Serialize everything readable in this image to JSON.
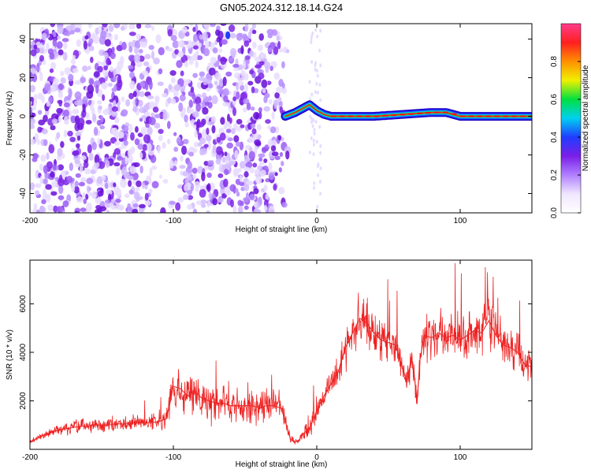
{
  "title": "GN05.2024.312.18.14.G24",
  "chart_data": [
    {
      "type": "heatmap",
      "xlabel": "Height of straight line (km)",
      "ylabel": "Frequency (Hz)",
      "xlim": [
        -200,
        150
      ],
      "ylim": [
        -50,
        48
      ],
      "xticks": [
        -200,
        -100,
        0,
        100
      ],
      "yticks": [
        -40,
        -20,
        0,
        20,
        40
      ],
      "colorbar": {
        "label": "Normalized spectral amplitude",
        "range": [
          0,
          1
        ],
        "ticks": [
          "0.0",
          "0.2",
          "0.4",
          "0.6",
          "0.8"
        ],
        "colors": [
          "#ffffff",
          "#f0e6ff",
          "#b080ff",
          "#7a1fe8",
          "#1f3dff",
          "#00d0f0",
          "#00e040",
          "#f0f000",
          "#ff9000",
          "#ff2020",
          "#ff3c8c"
        ]
      },
      "ridge": {
        "description_x": [
          -22,
          -15,
          -10,
          -5,
          0,
          5,
          10,
          20,
          40,
          60,
          80,
          90,
          100,
          120,
          150
        ],
        "frequency": [
          0,
          2,
          4,
          6,
          3,
          1,
          0,
          0,
          0,
          1,
          2,
          2,
          0,
          0,
          0
        ]
      },
      "noise_region_x": [
        -200,
        -20
      ]
    },
    {
      "type": "line",
      "xlabel": "Height of straight line (km)",
      "ylabel": "SNR (10 * v/v)",
      "xlim": [
        -200,
        150
      ],
      "ylim": [
        0,
        7800
      ],
      "xticks": [
        -200,
        -100,
        0,
        100
      ],
      "yticks": [
        2000,
        4000,
        6000
      ],
      "series": [
        {
          "color": "#ee2222",
          "x": [
            -200,
            -195,
            -190,
            -185,
            -180,
            -175,
            -170,
            -165,
            -160,
            -155,
            -150,
            -145,
            -140,
            -135,
            -130,
            -125,
            -120,
            -115,
            -110,
            -105,
            -102,
            -100,
            -95,
            -90,
            -85,
            -80,
            -75,
            -70,
            -65,
            -60,
            -55,
            -50,
            -45,
            -40,
            -35,
            -30,
            -25,
            -22,
            -20,
            -18,
            -15,
            -12,
            -10,
            -5,
            0,
            5,
            10,
            15,
            20,
            25,
            30,
            35,
            40,
            45,
            50,
            55,
            60,
            63,
            66,
            68,
            70,
            72,
            75,
            80,
            85,
            90,
            95,
            100,
            105,
            110,
            115,
            120,
            125,
            130,
            135,
            140,
            145,
            150
          ],
          "y": [
            300,
            450,
            600,
            700,
            800,
            850,
            900,
            950,
            950,
            1000,
            1000,
            1000,
            1050,
            1050,
            1100,
            1100,
            1100,
            1100,
            1150,
            1250,
            2000,
            2600,
            2500,
            2200,
            2400,
            2100,
            2000,
            1900,
            1900,
            1800,
            1800,
            1800,
            1800,
            1700,
            1800,
            1800,
            1700,
            1200,
            700,
            400,
            300,
            400,
            600,
            900,
            1600,
            2200,
            2700,
            3200,
            4200,
            4800,
            5400,
            5200,
            4800,
            4500,
            4400,
            4300,
            3300,
            2800,
            3800,
            3000,
            2000,
            3700,
            4700,
            4600,
            4800,
            4600,
            4700,
            4500,
            4700,
            4900,
            4800,
            5300,
            4700,
            4300,
            4200,
            4000,
            3500,
            3400
          ]
        }
      ]
    }
  ]
}
